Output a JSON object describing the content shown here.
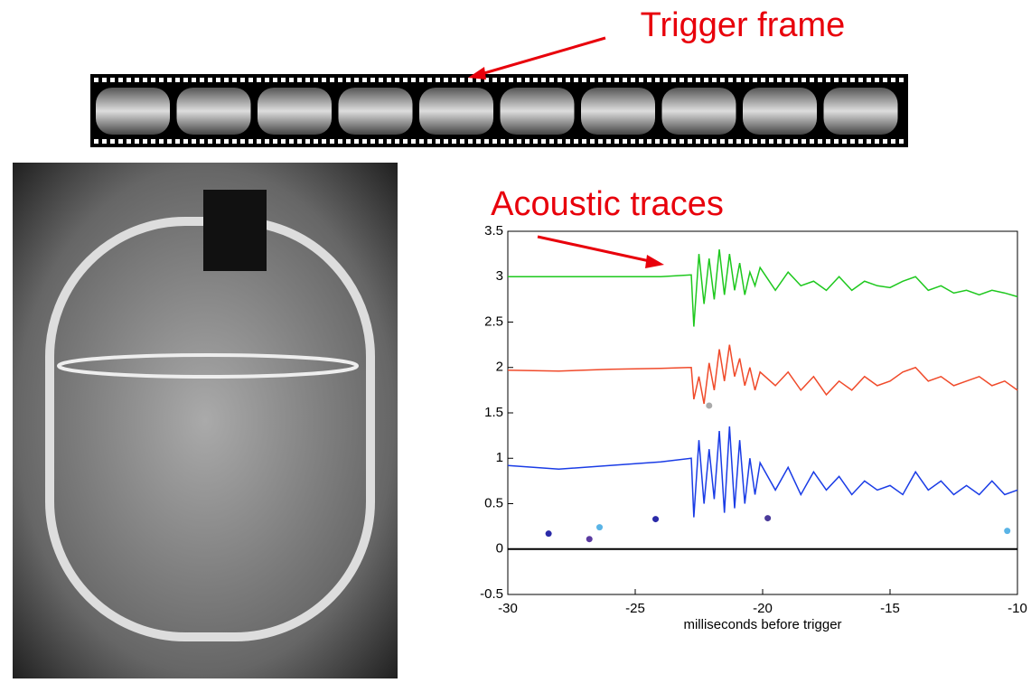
{
  "chart_data": {
    "type": "line",
    "annotations": [
      "Trigger frame",
      "Acoustic traces"
    ],
    "xlabel": "milliseconds before trigger",
    "x": [
      -30,
      -28,
      -26,
      -24,
      -22.8,
      -22.7,
      -22.5,
      -22.3,
      -22.1,
      -21.9,
      -21.7,
      -21.5,
      -21.3,
      -21.1,
      -20.9,
      -20.7,
      -20.5,
      -20.3,
      -20.1,
      -19.5,
      -19,
      -18.5,
      -18,
      -17.5,
      -17,
      -16.5,
      -16,
      -15.5,
      -15,
      -14.5,
      -14,
      -13.5,
      -13,
      -12.5,
      -12,
      -11.5,
      -11,
      -10.5,
      -10
    ],
    "series": [
      {
        "color": "#1ec81e",
        "values": [
          3.0,
          3.0,
          3.0,
          3.0,
          3.02,
          2.45,
          3.25,
          2.7,
          3.2,
          2.75,
          3.3,
          2.8,
          3.25,
          2.85,
          3.15,
          2.8,
          3.05,
          2.9,
          3.1,
          2.85,
          3.05,
          2.9,
          2.95,
          2.85,
          3.0,
          2.85,
          2.95,
          2.9,
          2.88,
          2.95,
          3.0,
          2.85,
          2.9,
          2.82,
          2.85,
          2.8,
          2.85,
          2.82,
          2.78
        ]
      },
      {
        "color": "#f04a2a",
        "values": [
          1.97,
          1.96,
          1.98,
          1.99,
          2.0,
          1.65,
          1.9,
          1.6,
          2.05,
          1.75,
          2.2,
          1.85,
          2.25,
          1.9,
          2.1,
          1.8,
          2.0,
          1.75,
          1.95,
          1.8,
          1.95,
          1.75,
          1.9,
          1.7,
          1.85,
          1.75,
          1.9,
          1.8,
          1.85,
          1.95,
          2.0,
          1.85,
          1.9,
          1.8,
          1.85,
          1.9,
          1.8,
          1.85,
          1.75
        ]
      },
      {
        "color": "#1a3ce6",
        "values": [
          0.92,
          0.88,
          0.92,
          0.96,
          1.0,
          0.35,
          1.2,
          0.5,
          1.1,
          0.55,
          1.3,
          0.4,
          1.35,
          0.45,
          1.2,
          0.5,
          1.0,
          0.6,
          0.95,
          0.65,
          0.9,
          0.6,
          0.85,
          0.65,
          0.8,
          0.6,
          0.75,
          0.65,
          0.7,
          0.6,
          0.85,
          0.65,
          0.75,
          0.6,
          0.7,
          0.6,
          0.75,
          0.6,
          0.65
        ]
      }
    ],
    "points": [
      {
        "x": -28.4,
        "y": 0.17,
        "color": "#2a2aa8"
      },
      {
        "x": -26.8,
        "y": 0.11,
        "color": "#5a3aa0"
      },
      {
        "x": -26.4,
        "y": 0.24,
        "color": "#5ab4e6"
      },
      {
        "x": -24.2,
        "y": 0.33,
        "color": "#2a2aa8"
      },
      {
        "x": -19.8,
        "y": 0.34,
        "color": "#4a3a9a"
      },
      {
        "x": -10.4,
        "y": 0.2,
        "color": "#5ab4e6"
      },
      {
        "x": -22.1,
        "y": 1.58,
        "color": "#aaaaaa"
      }
    ],
    "xlim": [
      -30,
      -10
    ],
    "xticks": [
      -30,
      -25,
      -20,
      -15,
      -10
    ],
    "ylim": [
      -0.5,
      3.5
    ],
    "yticks": [
      -0.5,
      0,
      0.5,
      1,
      1.5,
      2,
      2.5,
      3,
      3.5
    ]
  }
}
